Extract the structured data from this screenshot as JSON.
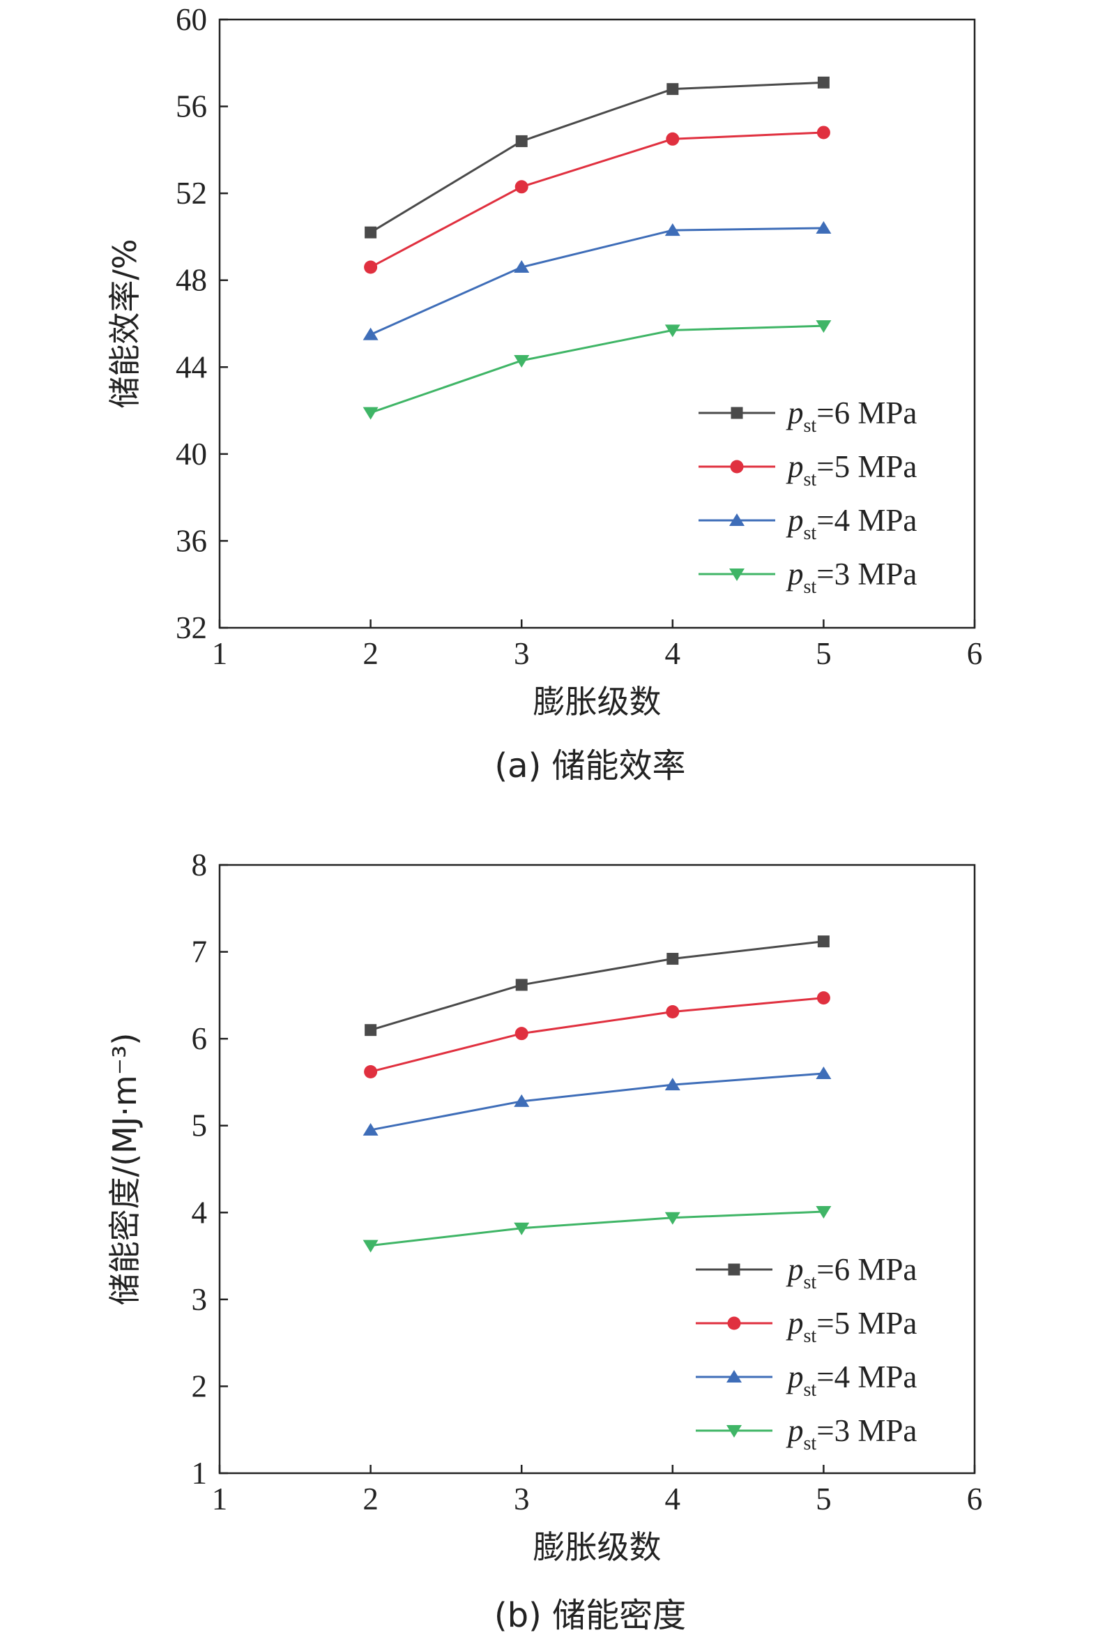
{
  "chart_data": [
    {
      "type": "line",
      "caption": "(a) 储能效率",
      "xlabel": "膨胀级数",
      "ylabel": "储能效率/%",
      "xlim": [
        1,
        6
      ],
      "ylim": [
        32,
        60
      ],
      "x_ticks": [
        "1",
        "2",
        "3",
        "4",
        "5",
        "6"
      ],
      "y_ticks": [
        "32",
        "36",
        "40",
        "44",
        "48",
        "52",
        "56",
        "60"
      ],
      "grid": false,
      "legend_position": "lower-right",
      "x": [
        2,
        3,
        4,
        5
      ],
      "series": [
        {
          "name_main": "p",
          "name_sub": "st",
          "name_rest": "=6 MPa",
          "color": "#4a4a4a",
          "marker": "square",
          "values": [
            50.2,
            54.4,
            56.8,
            57.1
          ]
        },
        {
          "name_main": "p",
          "name_sub": "st",
          "name_rest": "=5 MPa",
          "color": "#e0303f",
          "marker": "circle",
          "values": [
            48.6,
            52.3,
            54.5,
            54.8
          ]
        },
        {
          "name_main": "p",
          "name_sub": "st",
          "name_rest": "=4 MPa",
          "color": "#3e6db8",
          "marker": "triangle-up",
          "values": [
            45.5,
            48.6,
            50.3,
            50.4
          ]
        },
        {
          "name_main": "p",
          "name_sub": "st",
          "name_rest": "=3 MPa",
          "color": "#3fb566",
          "marker": "triangle-down",
          "values": [
            41.9,
            44.3,
            45.7,
            45.9
          ]
        }
      ]
    },
    {
      "type": "line",
      "caption": "(b) 储能密度",
      "xlabel": "膨胀级数",
      "ylabel": "储能密度/(MJ·m⁻³)",
      "xlim": [
        1,
        6
      ],
      "ylim": [
        1,
        8
      ],
      "x_ticks": [
        "1",
        "2",
        "3",
        "4",
        "5",
        "6"
      ],
      "y_ticks": [
        "1",
        "2",
        "3",
        "4",
        "5",
        "6",
        "7",
        "8"
      ],
      "grid": false,
      "legend_position": "lower-right",
      "x": [
        2,
        3,
        4,
        5
      ],
      "series": [
        {
          "name_main": "p",
          "name_sub": "st",
          "name_rest": "=6 MPa",
          "color": "#4a4a4a",
          "marker": "square",
          "values": [
            6.1,
            6.62,
            6.92,
            7.12
          ]
        },
        {
          "name_main": "p",
          "name_sub": "st",
          "name_rest": "=5 MPa",
          "color": "#e0303f",
          "marker": "circle",
          "values": [
            5.62,
            6.06,
            6.31,
            6.47
          ]
        },
        {
          "name_main": "p",
          "name_sub": "st",
          "name_rest": "=4 MPa",
          "color": "#3e6db8",
          "marker": "triangle-up",
          "values": [
            4.95,
            5.28,
            5.47,
            5.6
          ]
        },
        {
          "name_main": "p",
          "name_sub": "st",
          "name_rest": "=3 MPa",
          "color": "#3fb566",
          "marker": "triangle-down",
          "values": [
            3.62,
            3.82,
            3.94,
            4.01
          ]
        }
      ]
    }
  ]
}
